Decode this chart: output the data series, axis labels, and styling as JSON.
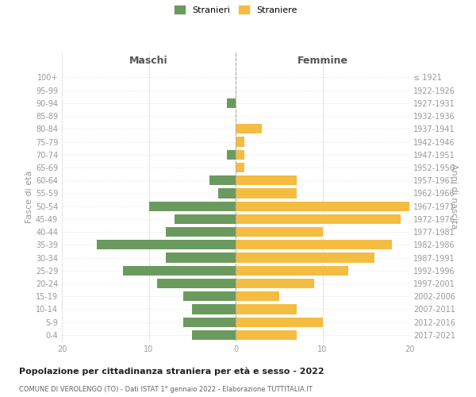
{
  "age_groups": [
    "0-4",
    "5-9",
    "10-14",
    "15-19",
    "20-24",
    "25-29",
    "30-34",
    "35-39",
    "40-44",
    "45-49",
    "50-54",
    "55-59",
    "60-64",
    "65-69",
    "70-74",
    "75-79",
    "80-84",
    "85-89",
    "90-94",
    "95-99",
    "100+"
  ],
  "birth_years": [
    "2017-2021",
    "2012-2016",
    "2007-2011",
    "2002-2006",
    "1997-2001",
    "1992-1996",
    "1987-1991",
    "1982-1986",
    "1977-1981",
    "1972-1976",
    "1967-1971",
    "1962-1966",
    "1957-1961",
    "1952-1956",
    "1947-1951",
    "1942-1946",
    "1937-1941",
    "1932-1936",
    "1927-1931",
    "1922-1926",
    "≤ 1921"
  ],
  "maschi": [
    5,
    6,
    5,
    6,
    9,
    13,
    8,
    16,
    8,
    7,
    10,
    2,
    3,
    0,
    1,
    0,
    0,
    0,
    1,
    0,
    0
  ],
  "femmine": [
    7,
    10,
    7,
    5,
    9,
    13,
    16,
    18,
    10,
    19,
    20,
    7,
    7,
    1,
    1,
    1,
    3,
    0,
    0,
    0,
    0
  ],
  "color_maschi": "#6b9a5e",
  "color_femmine": "#f5bc42",
  "title": "Popolazione per cittadinanza straniera per età e sesso - 2022",
  "subtitle": "COMUNE DI VEROLENGO (TO) - Dati ISTAT 1° gennaio 2022 - Elaborazione TUTTITALIA.IT",
  "xlabel_left": "Maschi",
  "xlabel_right": "Femmine",
  "ylabel_left": "Fasce di età",
  "ylabel_right": "Anni di nascita",
  "xlim": 20,
  "legend_stranieri": "Stranieri",
  "legend_straniere": "Straniere",
  "background_color": "#ffffff",
  "grid_color": "#cccccc"
}
